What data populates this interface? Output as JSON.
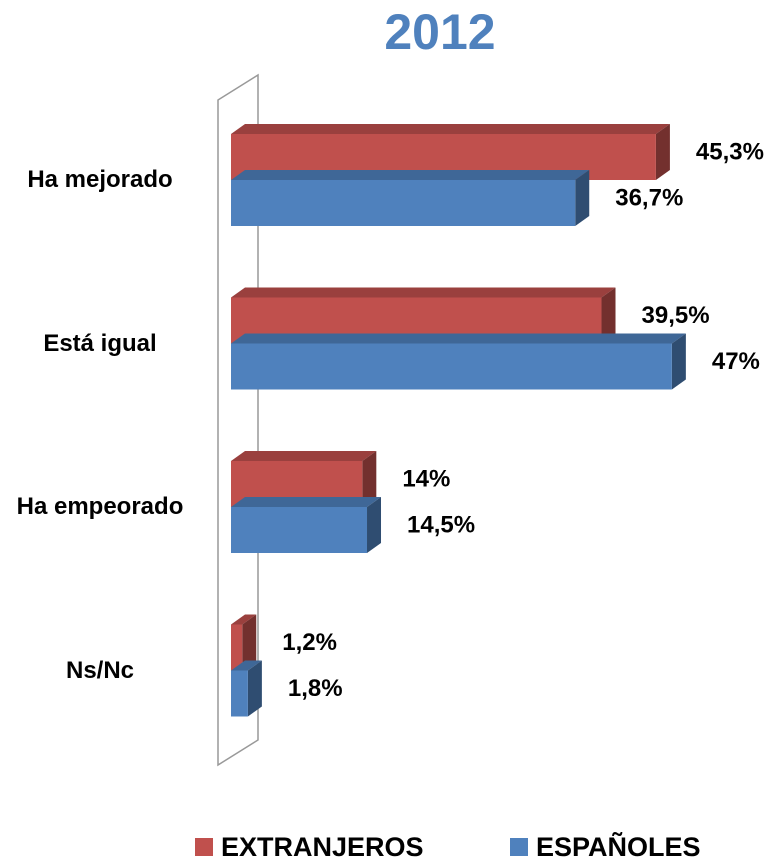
{
  "chart_data": {
    "type": "bar3d_horizontal",
    "title": "2012",
    "categories": [
      "Ha mejorado",
      "Está igual",
      "Ha empeorado",
      "Ns/Nc"
    ],
    "series": [
      {
        "name": "EXTRANJEROS",
        "color": "#c0504d",
        "values": [
          45.3,
          39.5,
          14,
          1.2
        ],
        "value_labels": [
          "45,3%",
          "39,5%",
          "14%",
          "1,2%"
        ]
      },
      {
        "name": "ESPAÑOLES",
        "color": "#4f81bd",
        "values": [
          36.7,
          47,
          14.5,
          1.8
        ],
        "value_labels": [
          "36,7%",
          "47%",
          "14,5%",
          "1,8%"
        ]
      }
    ]
  }
}
